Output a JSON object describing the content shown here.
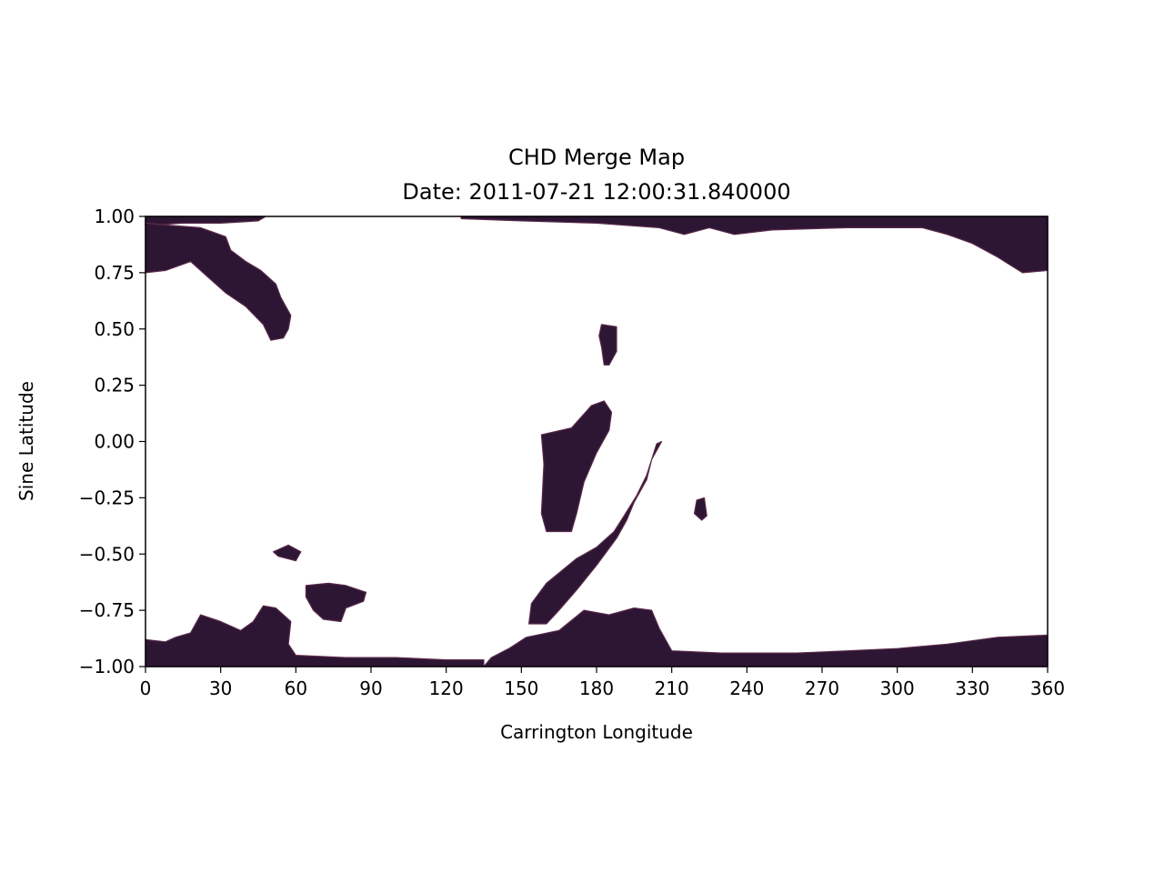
{
  "chart_data": {
    "type": "heatmap",
    "title": "CHD Merge Map",
    "subtitle": "Date: 2011-07-21 12:00:31.840000",
    "xlabel": "Carrington Longitude",
    "ylabel": "Sine Latitude",
    "xlim": [
      0,
      360
    ],
    "ylim": [
      -1.0,
      1.0
    ],
    "x_ticks": [
      0,
      30,
      60,
      90,
      120,
      150,
      180,
      210,
      240,
      270,
      300,
      330,
      360
    ],
    "x_tick_labels": [
      "0",
      "30",
      "60",
      "90",
      "120",
      "150",
      "180",
      "210",
      "240",
      "270",
      "300",
      "330",
      "360"
    ],
    "y_ticks": [
      1.0,
      0.75,
      0.5,
      0.25,
      0.0,
      -0.25,
      -0.5,
      -0.75,
      -1.0
    ],
    "y_tick_labels": [
      "1.00",
      "0.75",
      "0.50",
      "0.25",
      "0.00",
      "−0.25",
      "−0.50",
      "−0.75",
      "−1.00"
    ],
    "grid": false,
    "colors": {
      "hole": "#2d1634",
      "hole_edge": "#5a2a4a",
      "hole_bright": "#e0a090",
      "background": "#ffffff"
    },
    "regions": [
      {
        "name": "north-polar-band",
        "points": [
          [
            0,
            1.0
          ],
          [
            48,
            1.0
          ],
          [
            45,
            0.98
          ],
          [
            30,
            0.97
          ],
          [
            15,
            0.97
          ],
          [
            0,
            0.96
          ]
        ]
      },
      {
        "name": "north-polar-band-east",
        "points": [
          [
            126,
            1.0
          ],
          [
            360,
            1.0
          ],
          [
            360,
            0.76
          ],
          [
            350,
            0.75
          ],
          [
            340,
            0.82
          ],
          [
            330,
            0.88
          ],
          [
            320,
            0.92
          ],
          [
            310,
            0.95
          ],
          [
            280,
            0.95
          ],
          [
            250,
            0.94
          ],
          [
            235,
            0.92
          ],
          [
            225,
            0.95
          ],
          [
            215,
            0.92
          ],
          [
            205,
            0.95
          ],
          [
            180,
            0.97
          ],
          [
            150,
            0.98
          ],
          [
            126,
            0.99
          ]
        ]
      },
      {
        "name": "northwest-hole",
        "points": [
          [
            0,
            0.97
          ],
          [
            10,
            0.96
          ],
          [
            22,
            0.95
          ],
          [
            32,
            0.91
          ],
          [
            34,
            0.85
          ],
          [
            40,
            0.8
          ],
          [
            46,
            0.76
          ],
          [
            52,
            0.7
          ],
          [
            54,
            0.64
          ],
          [
            58,
            0.56
          ],
          [
            57,
            0.5
          ],
          [
            55,
            0.46
          ],
          [
            50,
            0.45
          ],
          [
            47,
            0.52
          ],
          [
            40,
            0.6
          ],
          [
            32,
            0.66
          ],
          [
            26,
            0.72
          ],
          [
            18,
            0.8
          ],
          [
            8,
            0.76
          ],
          [
            0,
            0.75
          ]
        ]
      },
      {
        "name": "north-small-hole",
        "points": [
          [
            182,
            0.52
          ],
          [
            188,
            0.51
          ],
          [
            188,
            0.4
          ],
          [
            185,
            0.34
          ],
          [
            183,
            0.34
          ],
          [
            182,
            0.42
          ],
          [
            181,
            0.47
          ]
        ]
      },
      {
        "name": "central-hole",
        "points": [
          [
            158,
            0.03
          ],
          [
            170,
            0.06
          ],
          [
            178,
            0.16
          ],
          [
            183,
            0.18
          ],
          [
            186,
            0.13
          ],
          [
            185,
            0.05
          ],
          [
            180,
            -0.05
          ],
          [
            175,
            -0.18
          ],
          [
            172,
            -0.32
          ],
          [
            170,
            -0.4
          ],
          [
            160,
            -0.4
          ],
          [
            158,
            -0.32
          ],
          [
            159,
            -0.1
          ]
        ]
      },
      {
        "name": "central-filament",
        "points": [
          [
            204,
            -0.01
          ],
          [
            206,
            0.0
          ],
          [
            202,
            -0.08
          ],
          [
            200,
            -0.17
          ],
          [
            195,
            -0.27
          ],
          [
            192,
            -0.35
          ],
          [
            188,
            -0.43
          ],
          [
            180,
            -0.55
          ],
          [
            172,
            -0.66
          ],
          [
            165,
            -0.75
          ],
          [
            160,
            -0.81
          ],
          [
            153,
            -0.81
          ],
          [
            154,
            -0.72
          ],
          [
            160,
            -0.63
          ],
          [
            172,
            -0.52
          ],
          [
            180,
            -0.47
          ],
          [
            187,
            -0.4
          ],
          [
            191,
            -0.33
          ],
          [
            196,
            -0.24
          ],
          [
            200,
            -0.15
          ]
        ]
      },
      {
        "name": "small-hole-222",
        "points": [
          [
            220,
            -0.26
          ],
          [
            223,
            -0.25
          ],
          [
            224,
            -0.33
          ],
          [
            222,
            -0.35
          ],
          [
            219,
            -0.32
          ]
        ]
      },
      {
        "name": "small-hole-55",
        "points": [
          [
            51,
            -0.49
          ],
          [
            57,
            -0.46
          ],
          [
            62,
            -0.49
          ],
          [
            60,
            -0.53
          ],
          [
            53,
            -0.51
          ]
        ]
      },
      {
        "name": "hole-65",
        "points": [
          [
            64,
            -0.64
          ],
          [
            73,
            -0.63
          ],
          [
            80,
            -0.64
          ],
          [
            88,
            -0.67
          ],
          [
            87,
            -0.71
          ],
          [
            80,
            -0.74
          ],
          [
            78,
            -0.8
          ],
          [
            71,
            -0.79
          ],
          [
            67,
            -0.75
          ],
          [
            64,
            -0.69
          ]
        ]
      },
      {
        "name": "south-polar-cluster-west",
        "points": [
          [
            0,
            -1.0
          ],
          [
            135,
            -1.0
          ],
          [
            135,
            -0.97
          ],
          [
            120,
            -0.97
          ],
          [
            100,
            -0.96
          ],
          [
            80,
            -0.96
          ],
          [
            60,
            -0.95
          ],
          [
            57,
            -0.9
          ],
          [
            58,
            -0.8
          ],
          [
            52,
            -0.74
          ],
          [
            47,
            -0.73
          ],
          [
            43,
            -0.8
          ],
          [
            38,
            -0.84
          ],
          [
            30,
            -0.8
          ],
          [
            22,
            -0.77
          ],
          [
            18,
            -0.85
          ],
          [
            12,
            -0.87
          ],
          [
            8,
            -0.89
          ],
          [
            0,
            -0.88
          ]
        ]
      },
      {
        "name": "south-polar-band-east",
        "points": [
          [
            135,
            -1.0
          ],
          [
            360,
            -1.0
          ],
          [
            360,
            -0.86
          ],
          [
            340,
            -0.87
          ],
          [
            320,
            -0.9
          ],
          [
            300,
            -0.92
          ],
          [
            280,
            -0.93
          ],
          [
            260,
            -0.94
          ],
          [
            230,
            -0.94
          ],
          [
            210,
            -0.93
          ],
          [
            205,
            -0.83
          ],
          [
            202,
            -0.75
          ],
          [
            195,
            -0.74
          ],
          [
            185,
            -0.77
          ],
          [
            175,
            -0.75
          ],
          [
            165,
            -0.84
          ],
          [
            152,
            -0.87
          ],
          [
            145,
            -0.92
          ],
          [
            138,
            -0.96
          ]
        ]
      }
    ]
  }
}
